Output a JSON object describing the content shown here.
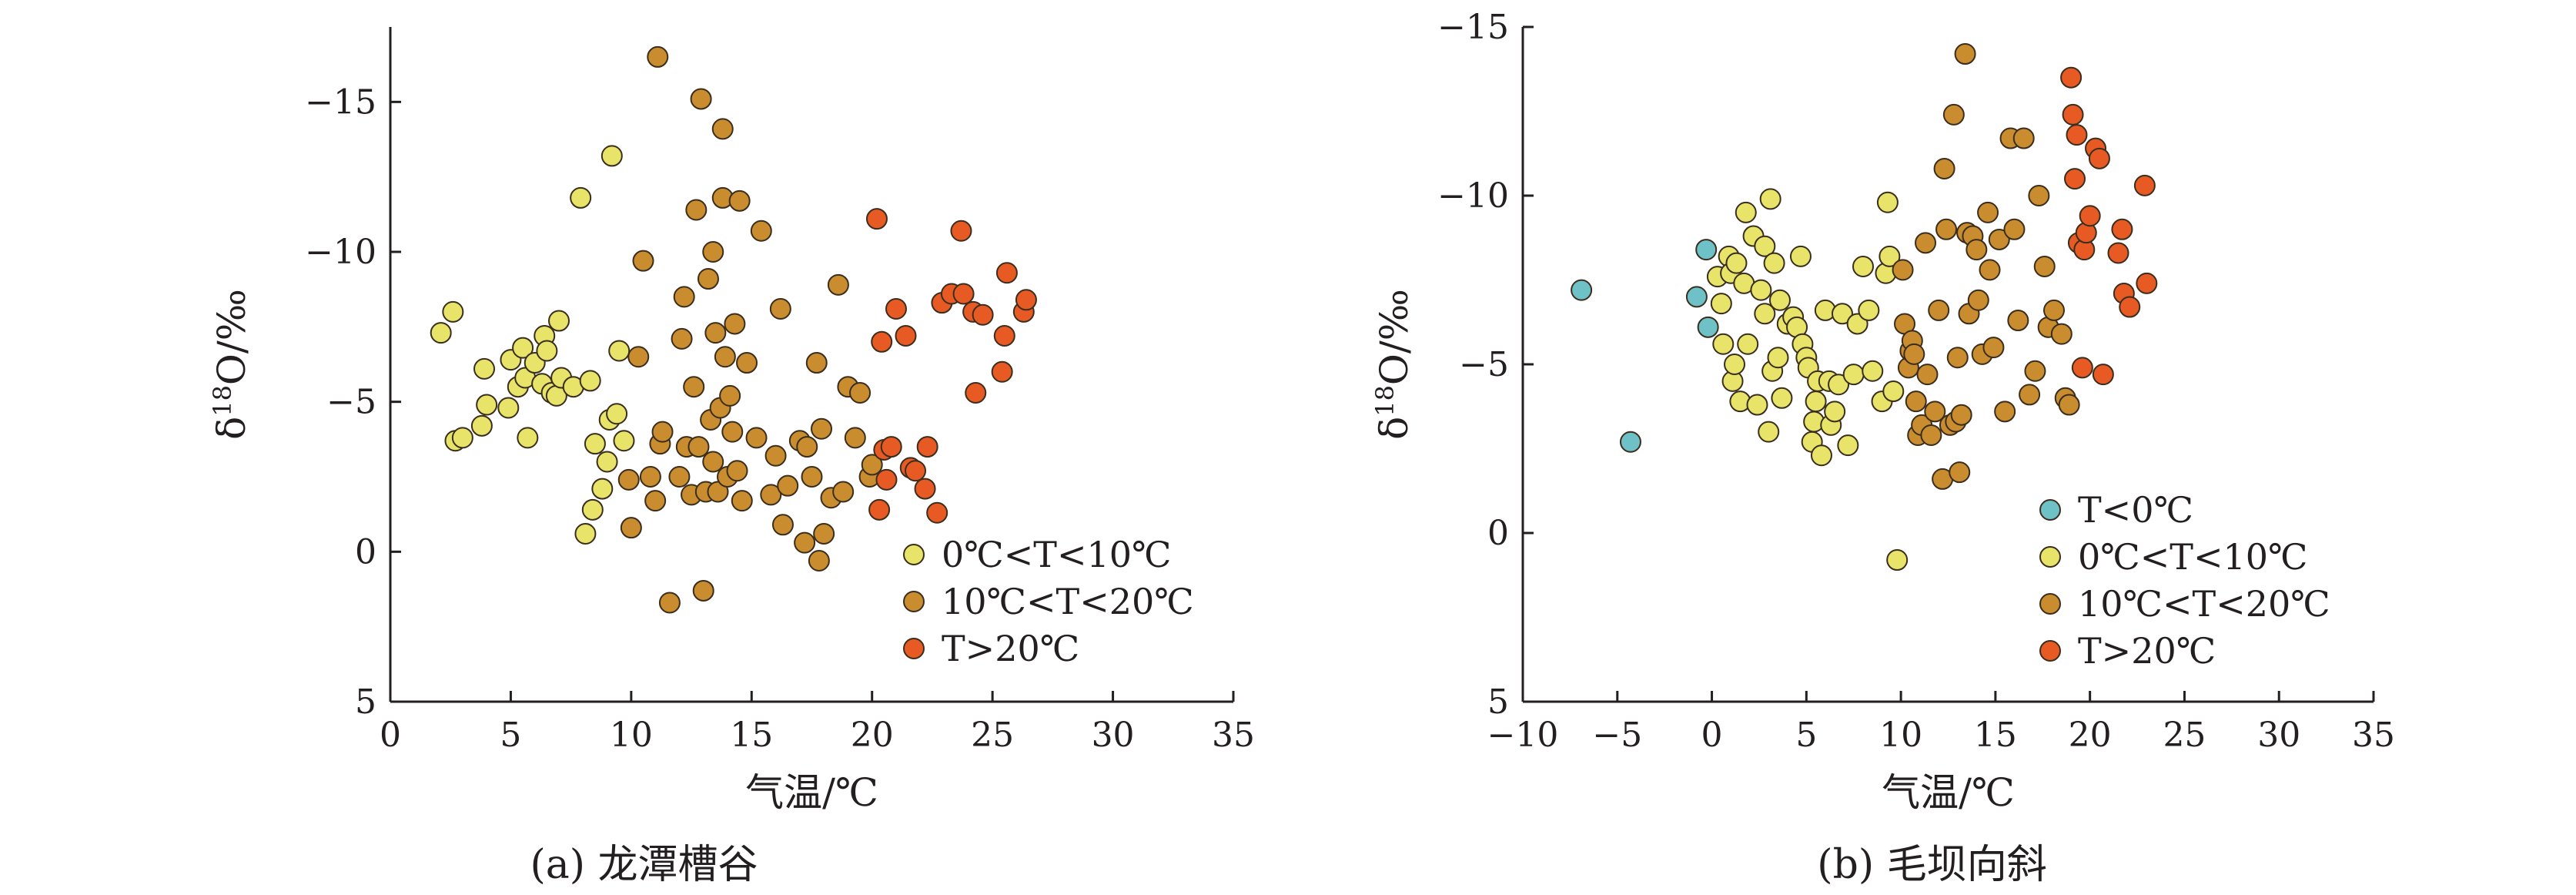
{
  "chart_data": [
    {
      "type": "scatter",
      "panel_title": "(a) 龙潭槽谷",
      "xlabel": "气温/℃",
      "ylabel": "δ18O/‰",
      "ylabel_parts": {
        "base": "δ",
        "sup": "18",
        "rest": "O/‰"
      },
      "xlim": [
        0,
        35
      ],
      "ylim": [
        5,
        -17.5
      ],
      "y_axis_inverted": true,
      "xticks": [
        0,
        5,
        10,
        15,
        20,
        25,
        30,
        35
      ],
      "yticks": [
        5,
        0,
        -5,
        -10,
        -15
      ],
      "xtick_labels": [
        "0",
        "5",
        "10",
        "15",
        "20",
        "25",
        "30",
        "35"
      ],
      "ytick_labels": [
        "5",
        "0",
        "−5",
        "−10",
        "−15"
      ],
      "grid": false,
      "legend_position": "bottom-right",
      "series": [
        {
          "name": "0℃<T<10℃",
          "color": "#e8e46a",
          "points": [
            [
              2.1,
              -7.3
            ],
            [
              2.6,
              -8.0
            ],
            [
              2.7,
              -3.7
            ],
            [
              3.0,
              -3.8
            ],
            [
              3.8,
              -4.2
            ],
            [
              3.9,
              -6.1
            ],
            [
              4.0,
              -4.9
            ],
            [
              4.9,
              -4.8
            ],
            [
              5.0,
              -6.4
            ],
            [
              5.3,
              -5.5
            ],
            [
              5.5,
              -6.8
            ],
            [
              5.6,
              -5.8
            ],
            [
              5.7,
              -3.8
            ],
            [
              6.0,
              -6.3
            ],
            [
              6.3,
              -5.6
            ],
            [
              6.4,
              -7.2
            ],
            [
              6.5,
              -6.7
            ],
            [
              6.7,
              -5.3
            ],
            [
              6.9,
              -5.2
            ],
            [
              7.0,
              -7.7
            ],
            [
              7.1,
              -5.8
            ],
            [
              7.6,
              -5.5
            ],
            [
              7.9,
              -11.8
            ],
            [
              8.1,
              -0.6
            ],
            [
              8.3,
              -5.7
            ],
            [
              8.4,
              -1.4
            ],
            [
              8.5,
              -3.6
            ],
            [
              8.8,
              -2.1
            ],
            [
              9.0,
              -3.0
            ],
            [
              9.1,
              -4.4
            ],
            [
              9.2,
              -13.2
            ],
            [
              9.4,
              -4.6
            ],
            [
              9.5,
              -6.7
            ],
            [
              9.7,
              -3.7
            ]
          ]
        },
        {
          "name": "10℃<T<20℃",
          "color": "#c98c2e",
          "points": [
            [
              9.9,
              -2.4
            ],
            [
              10.0,
              -0.8
            ],
            [
              10.3,
              -6.5
            ],
            [
              10.5,
              -9.7
            ],
            [
              10.8,
              -2.5
            ],
            [
              11.0,
              -1.7
            ],
            [
              11.1,
              -16.5
            ],
            [
              11.2,
              -3.6
            ],
            [
              11.3,
              -4.0
            ],
            [
              11.6,
              1.7
            ],
            [
              12.0,
              -2.5
            ],
            [
              12.1,
              -7.1
            ],
            [
              12.2,
              -8.5
            ],
            [
              12.3,
              -3.5
            ],
            [
              12.5,
              -1.9
            ],
            [
              12.6,
              -5.5
            ],
            [
              12.7,
              -11.4
            ],
            [
              12.8,
              -3.5
            ],
            [
              12.9,
              -15.1
            ],
            [
              13.0,
              1.3
            ],
            [
              13.1,
              -2.0
            ],
            [
              13.2,
              -9.1
            ],
            [
              13.3,
              -4.4
            ],
            [
              13.4,
              -3.0
            ],
            [
              13.4,
              -10.0
            ],
            [
              13.5,
              -7.3
            ],
            [
              13.6,
              -2.0
            ],
            [
              13.7,
              -4.8
            ],
            [
              13.8,
              -11.8
            ],
            [
              13.8,
              -14.1
            ],
            [
              13.9,
              -6.5
            ],
            [
              14.0,
              -2.5
            ],
            [
              14.1,
              -5.2
            ],
            [
              14.2,
              -4.0
            ],
            [
              14.3,
              -7.6
            ],
            [
              14.4,
              -2.7
            ],
            [
              14.5,
              -11.7
            ],
            [
              14.6,
              -1.7
            ],
            [
              14.8,
              -6.3
            ],
            [
              15.2,
              -3.8
            ],
            [
              15.4,
              -10.7
            ],
            [
              15.8,
              -1.9
            ],
            [
              16.0,
              -3.2
            ],
            [
              16.2,
              -8.1
            ],
            [
              16.3,
              -0.9
            ],
            [
              16.5,
              -2.2
            ],
            [
              17.0,
              -3.7
            ],
            [
              17.2,
              -0.3
            ],
            [
              17.3,
              -3.5
            ],
            [
              17.5,
              -2.5
            ],
            [
              17.7,
              -6.3
            ],
            [
              17.8,
              0.3
            ],
            [
              17.9,
              -4.1
            ],
            [
              18.0,
              -0.6
            ],
            [
              18.3,
              -1.8
            ],
            [
              18.6,
              -8.9
            ],
            [
              18.8,
              -2.0
            ],
            [
              19.0,
              -5.5
            ],
            [
              19.3,
              -3.8
            ],
            [
              19.5,
              -5.3
            ],
            [
              19.9,
              -2.5
            ],
            [
              20.0,
              -2.9
            ]
          ]
        },
        {
          "name": "T>20℃",
          "color": "#e85a24",
          "points": [
            [
              20.2,
              -11.1
            ],
            [
              20.3,
              -1.4
            ],
            [
              20.4,
              -7.0
            ],
            [
              20.5,
              -3.4
            ],
            [
              20.6,
              -2.4
            ],
            [
              20.8,
              -3.5
            ],
            [
              21.0,
              -8.1
            ],
            [
              21.4,
              -7.2
            ],
            [
              21.6,
              -2.8
            ],
            [
              21.8,
              -2.7
            ],
            [
              22.2,
              -2.1
            ],
            [
              22.3,
              -3.5
            ],
            [
              22.7,
              -1.3
            ],
            [
              22.9,
              -8.3
            ],
            [
              23.3,
              -8.6
            ],
            [
              23.7,
              -10.7
            ],
            [
              23.8,
              -8.6
            ],
            [
              24.2,
              -8.0
            ],
            [
              24.3,
              -5.3
            ],
            [
              24.6,
              -7.9
            ],
            [
              25.4,
              -6.0
            ],
            [
              25.5,
              -7.2
            ],
            [
              25.6,
              -9.3
            ],
            [
              26.3,
              -8.0
            ],
            [
              26.4,
              -8.4
            ]
          ]
        }
      ]
    },
    {
      "type": "scatter",
      "panel_title": "(b) 毛坝向斜",
      "xlabel": "气温/℃",
      "ylabel": "δ18O/‰",
      "ylabel_parts": {
        "base": "δ",
        "sup": "18",
        "rest": "O/‰"
      },
      "xlim": [
        -10,
        35
      ],
      "ylim": [
        5,
        -15
      ],
      "y_axis_inverted": true,
      "xticks": [
        -10,
        -5,
        0,
        5,
        10,
        15,
        20,
        25,
        30,
        35
      ],
      "yticks": [
        5,
        0,
        -5,
        -10,
        -15
      ],
      "xtick_labels": [
        "−10",
        "−5",
        "0",
        "5",
        "10",
        "15",
        "20",
        "25",
        "30",
        "35"
      ],
      "ytick_labels": [
        "5",
        "0",
        "−5",
        "−10",
        "−15"
      ],
      "grid": false,
      "legend_position": "bottom-center",
      "series": [
        {
          "name": "T<0℃",
          "color": "#6ec1c6",
          "points": [
            [
              -6.9,
              -7.2
            ],
            [
              -4.3,
              -2.7
            ],
            [
              -0.8,
              -7.0
            ],
            [
              -0.3,
              -8.4
            ],
            [
              -0.2,
              -6.1
            ]
          ]
        },
        {
          "name": "0℃<T<10℃",
          "color": "#e8e46a",
          "points": [
            [
              0.3,
              -7.6
            ],
            [
              0.5,
              -6.8
            ],
            [
              0.6,
              -5.6
            ],
            [
              0.9,
              -8.2
            ],
            [
              1.0,
              -7.7
            ],
            [
              1.1,
              -4.5
            ],
            [
              1.2,
              -5.0
            ],
            [
              1.3,
              -8.0
            ],
            [
              1.5,
              -3.9
            ],
            [
              1.7,
              -7.4
            ],
            [
              1.8,
              -9.5
            ],
            [
              1.9,
              -5.6
            ],
            [
              2.2,
              -8.8
            ],
            [
              2.4,
              -3.8
            ],
            [
              2.6,
              -7.2
            ],
            [
              2.8,
              -6.5
            ],
            [
              2.8,
              -8.5
            ],
            [
              3.0,
              -3.0
            ],
            [
              3.1,
              -9.9
            ],
            [
              3.2,
              -4.8
            ],
            [
              3.3,
              -8.0
            ],
            [
              3.5,
              -5.2
            ],
            [
              3.6,
              -6.9
            ],
            [
              3.7,
              -4.0
            ],
            [
              4.0,
              -6.2
            ],
            [
              4.3,
              -6.4
            ],
            [
              4.5,
              -6.1
            ],
            [
              4.7,
              -8.2
            ],
            [
              4.8,
              -5.6
            ],
            [
              5.0,
              -5.2
            ],
            [
              5.1,
              -4.9
            ],
            [
              5.3,
              -2.7
            ],
            [
              5.4,
              -3.3
            ],
            [
              5.5,
              -3.9
            ],
            [
              5.6,
              -4.5
            ],
            [
              5.8,
              -2.3
            ],
            [
              6.0,
              -6.6
            ],
            [
              6.2,
              -4.5
            ],
            [
              6.3,
              -3.2
            ],
            [
              6.5,
              -3.6
            ],
            [
              6.7,
              -4.4
            ],
            [
              6.9,
              -6.5
            ],
            [
              7.2,
              -2.6
            ],
            [
              7.5,
              -4.7
            ],
            [
              7.7,
              -6.2
            ],
            [
              8.0,
              -7.9
            ],
            [
              8.3,
              -6.6
            ],
            [
              8.5,
              -4.8
            ],
            [
              9.0,
              -3.9
            ],
            [
              9.2,
              -7.7
            ],
            [
              9.3,
              -9.8
            ],
            [
              9.4,
              -8.2
            ],
            [
              9.6,
              -4.2
            ],
            [
              9.8,
              0.8
            ]
          ]
        },
        {
          "name": "10℃<T<20℃",
          "color": "#c98c2e",
          "points": [
            [
              10.1,
              -7.8
            ],
            [
              10.2,
              -6.2
            ],
            [
              10.4,
              -4.9
            ],
            [
              10.5,
              -5.4
            ],
            [
              10.6,
              -5.7
            ],
            [
              10.7,
              -5.3
            ],
            [
              10.8,
              -3.9
            ],
            [
              10.9,
              -2.9
            ],
            [
              11.1,
              -3.2
            ],
            [
              11.3,
              -8.6
            ],
            [
              11.4,
              -4.7
            ],
            [
              11.6,
              -2.9
            ],
            [
              11.8,
              -3.6
            ],
            [
              12.0,
              -6.6
            ],
            [
              12.2,
              -1.6
            ],
            [
              12.3,
              -10.8
            ],
            [
              12.4,
              -9.0
            ],
            [
              12.6,
              -3.2
            ],
            [
              12.8,
              -12.4
            ],
            [
              12.9,
              -3.3
            ],
            [
              13.0,
              -5.2
            ],
            [
              13.1,
              -1.8
            ],
            [
              13.2,
              -3.5
            ],
            [
              13.4,
              -14.2
            ],
            [
              13.5,
              -8.9
            ],
            [
              13.6,
              -6.5
            ],
            [
              13.8,
              -8.8
            ],
            [
              14.0,
              -8.4
            ],
            [
              14.1,
              -6.9
            ],
            [
              14.3,
              -5.3
            ],
            [
              14.6,
              -9.5
            ],
            [
              14.7,
              -7.8
            ],
            [
              14.9,
              -5.5
            ],
            [
              15.2,
              -8.7
            ],
            [
              15.5,
              -3.6
            ],
            [
              15.8,
              -11.7
            ],
            [
              16.0,
              -9.0
            ],
            [
              16.2,
              -6.3
            ],
            [
              16.5,
              -11.7
            ],
            [
              16.8,
              -4.1
            ],
            [
              17.1,
              -4.8
            ],
            [
              17.3,
              -10.0
            ],
            [
              17.6,
              -7.9
            ],
            [
              17.8,
              -6.1
            ],
            [
              18.1,
              -6.6
            ],
            [
              18.5,
              -5.9
            ],
            [
              18.7,
              -4.0
            ],
            [
              18.9,
              -3.8
            ]
          ]
        },
        {
          "name": "T>20℃",
          "color": "#e85a24",
          "points": [
            [
              19.0,
              -13.5
            ],
            [
              19.1,
              -12.4
            ],
            [
              19.2,
              -10.5
            ],
            [
              19.3,
              -11.8
            ],
            [
              19.4,
              -8.6
            ],
            [
              19.6,
              -4.9
            ],
            [
              19.7,
              -8.4
            ],
            [
              19.8,
              -8.9
            ],
            [
              20.0,
              -9.4
            ],
            [
              20.3,
              -11.4
            ],
            [
              20.5,
              -11.1
            ],
            [
              20.7,
              -4.7
            ],
            [
              21.5,
              -8.3
            ],
            [
              21.7,
              -9.0
            ],
            [
              21.8,
              -7.1
            ],
            [
              22.1,
              -6.7
            ],
            [
              22.9,
              -10.3
            ],
            [
              23.0,
              -7.4
            ]
          ]
        }
      ]
    }
  ]
}
